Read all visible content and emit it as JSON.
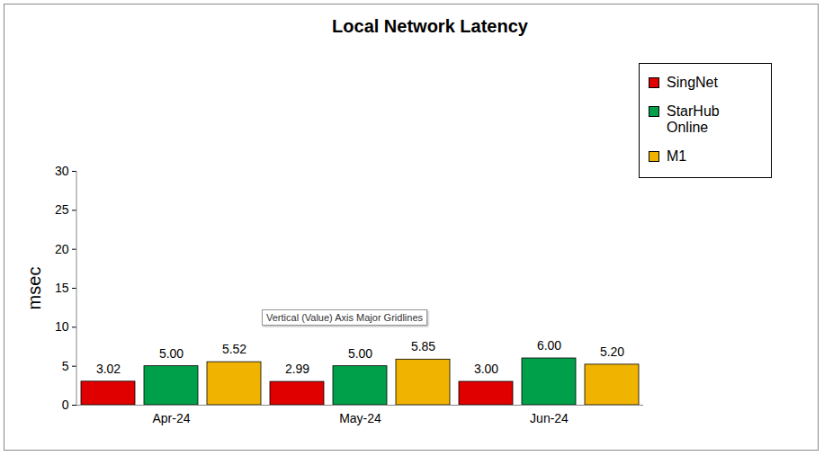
{
  "chart_data": {
    "type": "bar",
    "title": "Local Network Latency",
    "y_label": "msec",
    "categories": [
      "Apr-24",
      "May-24",
      "Jun-24"
    ],
    "series": [
      {
        "name": "SingNet",
        "color": "#e00000",
        "values": [
          3.02,
          2.99,
          3.0
        ],
        "value_labels": [
          "3.02",
          "2.99",
          "3.00"
        ]
      },
      {
        "name": "StarHub Online",
        "color": "#00a04a",
        "values": [
          5.0,
          5.0,
          6.0
        ],
        "value_labels": [
          "5.00",
          "5.00",
          "6.00"
        ]
      },
      {
        "name": "M1",
        "color": "#f0b400",
        "values": [
          5.52,
          5.85,
          5.2
        ],
        "value_labels": [
          "5.52",
          "5.85",
          "5.20"
        ]
      }
    ],
    "ylim": [
      0,
      30
    ],
    "yticks": [
      0,
      5,
      10,
      15,
      20,
      25,
      30
    ],
    "grid": false,
    "legend": "top-right",
    "data_labels": true,
    "annotations": [
      {
        "text": "Vertical (Value) Axis Major Gridlines"
      }
    ]
  }
}
